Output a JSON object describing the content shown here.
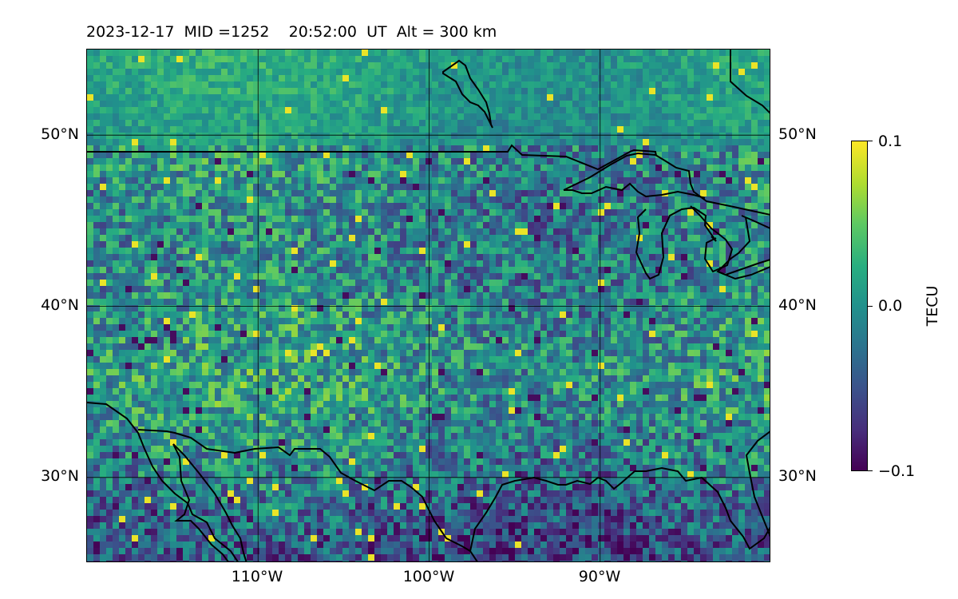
{
  "title": {
    "date": "2023-12-17",
    "mid": "MID =1252",
    "time": "20:52:00",
    "time_unit": "UT",
    "alt": "Alt = 300 km"
  },
  "map": {
    "lat_labels": [
      "50°N",
      "40°N",
      "30°N"
    ],
    "lon_labels": [
      "110°W",
      "100°W",
      "90°W"
    ],
    "extent": {
      "lon_min": -120,
      "lon_max": -80,
      "lat_min": 25,
      "lat_max": 55
    },
    "lat_lines": [
      50,
      40,
      30
    ],
    "lon_lines": [
      -110,
      -100,
      -90
    ],
    "colormap": "viridis",
    "coastline_color": "#000000"
  },
  "colorbar": {
    "label": "TECU",
    "ticks": [
      "0.1",
      "0.0",
      "−0.1"
    ],
    "min": -0.1,
    "max": 0.1
  }
}
